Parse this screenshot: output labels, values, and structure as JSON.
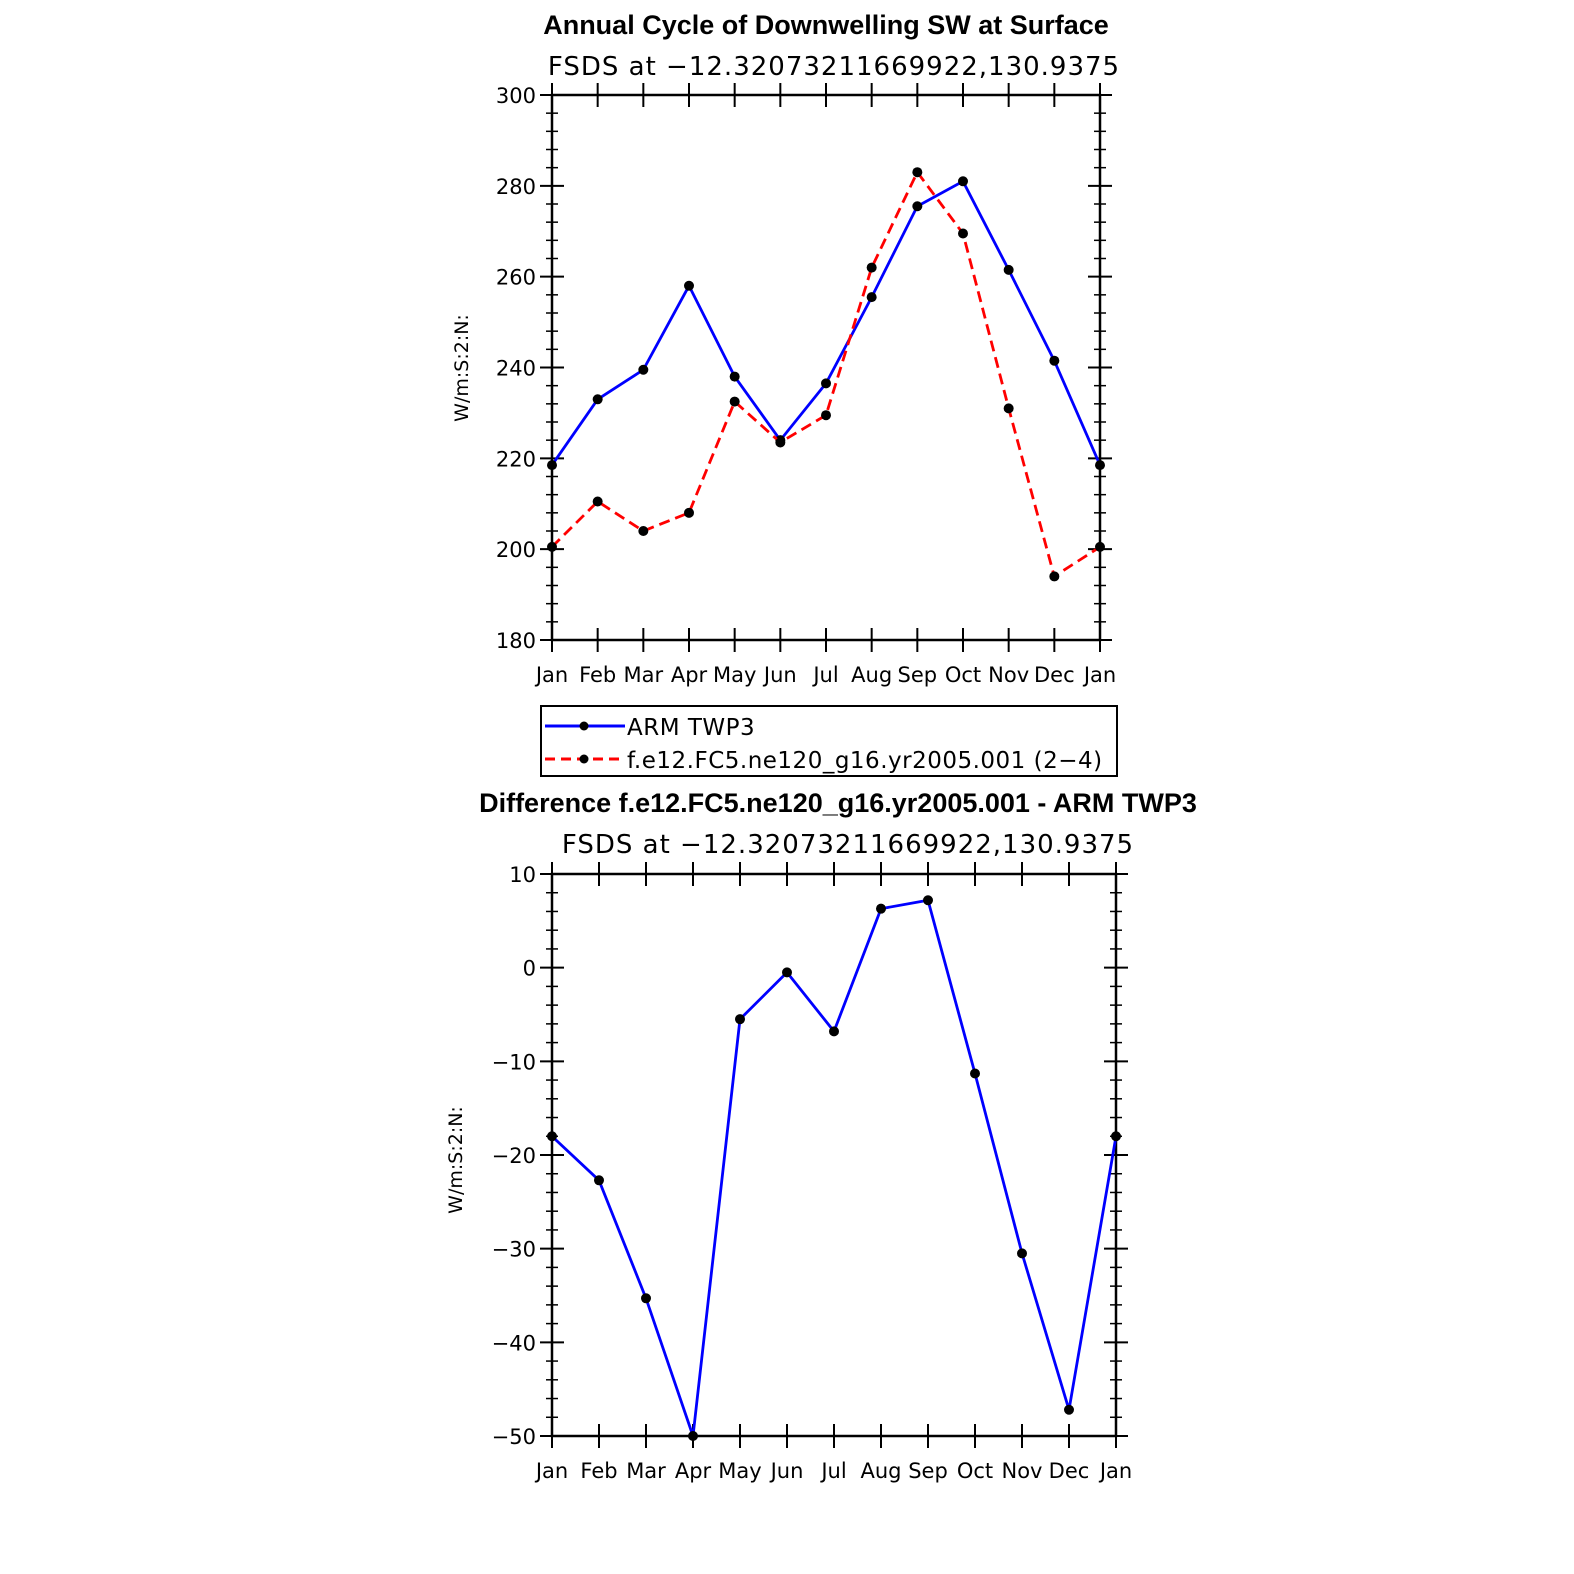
{
  "chart_data": [
    {
      "type": "line",
      "title": "Annual Cycle of Downwelling SW at Surface",
      "subtitle": "FSDS at −12.32073211669922,130.9375",
      "ylabel": "W/m:S:2:N:",
      "xlabel": "",
      "categories": [
        "Jan",
        "Feb",
        "Mar",
        "Apr",
        "May",
        "Jun",
        "Jul",
        "Aug",
        "Sep",
        "Oct",
        "Nov",
        "Dec",
        "Jan"
      ],
      "ylim": [
        180,
        300
      ],
      "yticks": [
        "180",
        "200",
        "220",
        "240",
        "260",
        "280",
        "300"
      ],
      "grid": false,
      "legend_position": "bottom",
      "series": [
        {
          "name": "ARM TWP3",
          "color": "#0000ff",
          "dash": "solid",
          "values": [
            218.5,
            233,
            239.5,
            258,
            238,
            224,
            236.5,
            255.5,
            275.5,
            281,
            261.5,
            241.5,
            218.5
          ]
        },
        {
          "name": "f.e12.FC5.ne120_g16.yr2005.001 (2−4)",
          "color": "#ff0000",
          "dash": "dashed",
          "values": [
            200.5,
            210.5,
            204,
            208,
            232.5,
            223.5,
            229.5,
            262,
            283,
            269.5,
            231,
            194,
            200.5
          ]
        }
      ]
    },
    {
      "type": "line",
      "title": "Difference f.e12.FC5.ne120_g16.yr2005.001 - ARM TWP3",
      "subtitle": "FSDS at −12.32073211669922,130.9375",
      "ylabel": "W/m:S:2:N:",
      "xlabel": "",
      "categories": [
        "Jan",
        "Feb",
        "Mar",
        "Apr",
        "May",
        "Jun",
        "Jul",
        "Aug",
        "Sep",
        "Oct",
        "Nov",
        "Dec",
        "Jan"
      ],
      "ylim": [
        -50,
        10
      ],
      "yticks": [
        "−50",
        "−40",
        "−30",
        "−20",
        "−10",
        "0",
        "10"
      ],
      "grid": false,
      "series": [
        {
          "color": "#0000ff",
          "dash": "solid",
          "values": [
            -18,
            -22.7,
            -35.3,
            -50,
            -5.5,
            -0.5,
            -6.8,
            6.3,
            7.2,
            -11.3,
            -30.5,
            -47.2,
            -18
          ]
        }
      ]
    }
  ]
}
